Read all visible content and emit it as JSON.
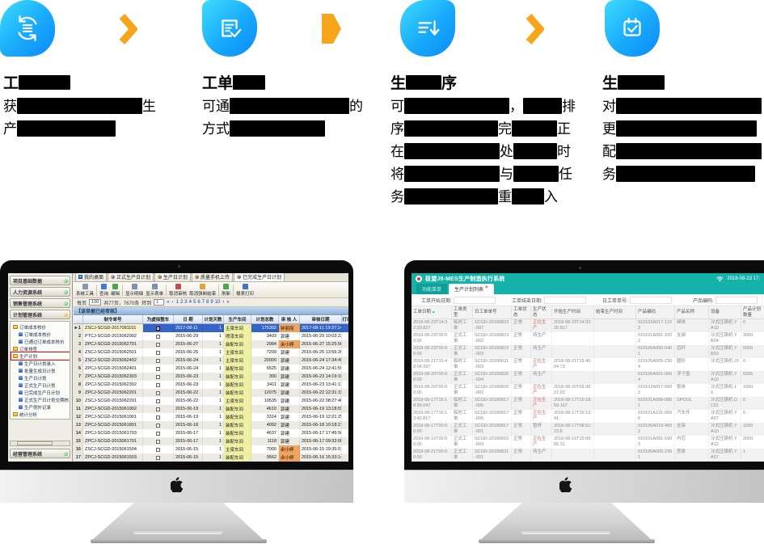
{
  "page": {
    "background": "#ffffff"
  },
  "colors": {
    "feature_icon_gradient_start": "#3edcfd",
    "feature_icon_gradient_end": "#0b8bf9",
    "arrow_orange": "#F7A61C",
    "mes_teal": "#14b2a9",
    "selection_blue": "#3464c8",
    "auditor_highlight_orange": "#f2a45c",
    "workshop_highlight_yellow": "#eef0a4",
    "producing_status_red": "#d96a62"
  },
  "features": [
    {
      "icon": "process-sync-icon",
      "title": [
        {
          "t": "工"
        },
        {
          "b": 64
        }
      ],
      "lines": [
        [
          {
            "t": "获"
          },
          {
            "b": 155
          },
          {
            "t": "生"
          }
        ],
        [
          {
            "t": "产"
          },
          {
            "b": 122
          }
        ]
      ]
    },
    {
      "icon": "work-order-check-icon",
      "title": [
        {
          "t": "工单"
        },
        {
          "b": 40
        }
      ],
      "lines": [
        [
          {
            "t": "可通"
          },
          {
            "b": 148
          },
          {
            "t": "的"
          }
        ],
        [
          {
            "t": "方式"
          },
          {
            "b": 118
          }
        ]
      ]
    },
    {
      "icon": "production-sequence-icon",
      "title": [
        {
          "t": "生"
        },
        {
          "b": 44
        },
        {
          "t": "序"
        }
      ],
      "lines": [
        [
          {
            "t": "可"
          },
          {
            "b": 130
          },
          {
            "t": "，"
          },
          {
            "b": 48
          },
          {
            "t": "排"
          }
        ],
        [
          {
            "t": "序"
          },
          {
            "b": 116
          },
          {
            "t": "完"
          },
          {
            "b": 56
          },
          {
            "t": "正"
          }
        ],
        [
          {
            "t": "在"
          },
          {
            "b": 118
          },
          {
            "t": "处"
          },
          {
            "b": 54
          },
          {
            "t": "时"
          }
        ],
        [
          {
            "t": "将"
          },
          {
            "b": 118
          },
          {
            "t": "与"
          },
          {
            "b": 56
          },
          {
            "t": "任"
          }
        ],
        [
          {
            "t": "务"
          },
          {
            "b": 116
          },
          {
            "t": "重"
          },
          {
            "b": 40
          },
          {
            "t": "入"
          }
        ]
      ]
    },
    {
      "icon": "schedule-calendar-icon",
      "title": [
        {
          "t": "生"
        },
        {
          "b": 58
        }
      ],
      "lines": [
        [
          {
            "t": "对"
          },
          {
            "b": 180
          }
        ],
        [
          {
            "t": "更"
          },
          {
            "b": 174
          }
        ],
        [
          {
            "t": "配"
          },
          {
            "b": 180
          }
        ],
        [
          {
            "t": "务"
          },
          {
            "b": 172
          }
        ]
      ]
    }
  ],
  "left_monitor": {
    "sidebar": {
      "modules": [
        "项目基础数据",
        "人力资源系统",
        "销售管理系统",
        "计划管理系统"
      ],
      "bottom_module": "经营管理系统",
      "tree": [
        {
          "label": "订单成本核价",
          "type": "folder",
          "level": 0
        },
        {
          "label": "订单成本核价",
          "type": "leaf",
          "level": 1
        },
        {
          "label": "已通过订单成本核价",
          "type": "leaf",
          "level": 1
        },
        {
          "label": "订单排查",
          "type": "folder",
          "level": 0
        },
        {
          "label": "生产计划",
          "type": "folder",
          "level": 0,
          "hl": true
        },
        {
          "label": "生产日计划录入",
          "type": "leaf",
          "level": 1
        },
        {
          "label": "批量生成日计划",
          "type": "leaf",
          "level": 1
        },
        {
          "label": "生产日计划",
          "type": "leaf",
          "level": 1
        },
        {
          "label": "正式生产日计划",
          "type": "leaf",
          "level": 1
        },
        {
          "label": "已完成生产日计划",
          "type": "leaf",
          "level": 1
        },
        {
          "label": "正式生产日计划交期核",
          "type": "leaf",
          "level": 1
        },
        {
          "label": "生产例外记录",
          "type": "leaf",
          "level": 1
        },
        {
          "label": "统计分析",
          "type": "folder",
          "level": 0
        }
      ]
    },
    "tabs": [
      "我的桌面",
      "正式生产日计划",
      "生产日计划",
      "质量手机上传",
      "已完成生产日计划"
    ],
    "toolbar": [
      "系统工具",
      "查询",
      "编辑",
      "显示明细",
      "显示表单",
      "取消审核",
      "取消强制结束",
      "刷新",
      "报表打印"
    ],
    "paging": {
      "per_page_label": "每页",
      "per_page": "100",
      "total": "共77页，7670条",
      "goto_label": "转到",
      "goto": "1",
      "nav_first": "«",
      "nav_prev": "‹",
      "nav_next": "›",
      "nav_last": "»",
      "pages": [
        "1",
        "2",
        "3",
        "4",
        "5",
        "6",
        "7",
        "8",
        "9",
        "10"
      ]
    },
    "section_title": "【该单据已经审核】",
    "columns": [
      "",
      "制令单号",
      "为虚拟整车",
      "日  期",
      "计划天数",
      "生产车间",
      "计划总数",
      "审 核 人",
      "审核日期",
      "打印次数",
      "最后"
    ],
    "rows": [
      [
        "ZSCJ-SCGD-2017081101",
        "1",
        "2017-08-11",
        "1",
        "主梁车间",
        "175392",
        "钟丽丽",
        "2017-08-11 19:37:14",
        "37",
        "20"
      ],
      [
        "PTCJ-SCGD-2015062902",
        "",
        "2015-06-29",
        "1",
        "喷漆车间",
        "3403",
        "郭建",
        "2015-06-29 10:03:23",
        "",
        ""
      ],
      [
        "ZPCJ-SCGD-2015062701",
        "",
        "2015-06-27",
        "1",
        "装配车间",
        "2984",
        "余小婷",
        "2015-06-27 15:25:56",
        "2",
        "20"
      ],
      [
        "ZSCJ-SCGD-2015062501",
        "",
        "2015-06-25",
        "1",
        "主梁车间",
        "7209",
        "郭建",
        "2015-06-25 13:56:20",
        "",
        ""
      ],
      [
        "ZSCJ-SCGD-2015062402",
        "",
        "2015-06-24",
        "1",
        "主梁车间",
        "20000",
        "郭建",
        "2015-06-24 17:34:49",
        "2",
        "20"
      ],
      [
        "ZPCJ-SCGD-2015062401",
        "",
        "2015-06-24",
        "1",
        "装配车间",
        "6525",
        "郭建",
        "2015-06-24 12:41:59",
        "1",
        "20"
      ],
      [
        "ZPCJ-SCGD-2015062303",
        "",
        "2015-06-23",
        "1",
        "装配车间",
        "300",
        "郭建",
        "2015-06-23 14:19:10",
        "",
        ""
      ],
      [
        "ZPCJ-SCGD-2015062302",
        "",
        "2015-06-23",
        "1",
        "装配车间",
        "3411",
        "郭建",
        "2015-06-23 13:41:13",
        "1",
        "20"
      ],
      [
        "ZPCJ-SCGD-2015062201",
        "",
        "2015-06-22",
        "1",
        "装配车间",
        "12075",
        "郭建",
        "2015-06-22 12:31:15",
        "2",
        "20"
      ],
      [
        "ZSCJ-SCGD-2015062201",
        "",
        "2015-06-22",
        "1",
        "主梁车间",
        "10535",
        "郭建",
        "2015-06-22 08:27:40",
        "",
        ""
      ],
      [
        "ZPCJ-SCGD-2015061902",
        "",
        "2015-06-19",
        "1",
        "装配车间",
        "4610",
        "郭建",
        "2015-06-19 13:18:59",
        "1",
        "20"
      ],
      [
        "ZPCJ-SCGD-2015061901",
        "",
        "2015-06-19",
        "1",
        "装配车间",
        "3314",
        "郭建",
        "2015-06-19 12:21:25",
        "1",
        "20"
      ],
      [
        "ZPCJ-SCGD-2015061801",
        "",
        "2015-06-18",
        "1",
        "装配车间",
        "4092",
        "郭建",
        "2015-06-18 10:18:21",
        "1",
        "20"
      ],
      [
        "ZPCJ-SCGD-2015061703",
        "",
        "2015-06-17",
        "1",
        "装配车间",
        "4637",
        "郭建",
        "2015-06-17 17:45:50",
        "1",
        "20"
      ],
      [
        "ZPCJ-SCGD-2015061701",
        "",
        "2015-06-17",
        "1",
        "装配车间",
        "1118",
        "郭建",
        "2015-06-17 09:32:00",
        "1",
        "20"
      ],
      [
        "ZSCJ-SCGD-2015061504",
        "",
        "2015-06-15",
        "1",
        "主梁车间",
        "7000",
        "余小婷",
        "2015-06-15 19:35:01",
        "",
        ""
      ],
      [
        "ZPCJ-SCGD-2015061503",
        "",
        "2015-06-15",
        "1",
        "装配车间",
        "9562",
        "余小婷",
        "2015-06-16 15:33:14",
        "1",
        "20"
      ]
    ]
  },
  "right_monitor": {
    "titlebar": {
      "title": "极望J9-MES生产制造执行系统",
      "datetime": "2018-08-23 17:"
    },
    "tabs": [
      "功能菜单",
      "生产计划列表"
    ],
    "close_glyph": "×",
    "filters": [
      "工单开始日期:",
      "工单结束日期:",
      "日工单单号:",
      "产品编码:"
    ],
    "sort_glyph": "▲",
    "columns": [
      "工单日期",
      "工单类型",
      "日工单单号",
      "工单状态",
      "生产状态",
      "开始生产时间",
      "结束生产时间",
      "产品编码",
      "产品名称",
      "设备",
      "产品计划数量",
      "产品合格数"
    ],
    "rows": [
      [
        "2018-08-23T14:32:20.827",
        "临时工单",
        "SCGD-20180823-007",
        "正常",
        "正在生产",
        "2018-08-23T14:32:20.917",
        "",
        "010102A017-1103",
        "阀体",
        "冷式压铸机 YA10",
        "0",
        ""
      ],
      [
        "2018-08-23T00:00:00",
        "正式工单",
        "SCGD-20180823-002",
        "正常",
        "待生产",
        "",
        "",
        "010101A081-3202",
        "支阀",
        "冷式压铸机 YB04",
        "3000",
        ""
      ],
      [
        "2018-08-23T00:00:00",
        "正式工单",
        "SCGD-20180823-003",
        "正常",
        "待生产",
        "",
        "",
        "010105A050-0401",
        "齿杆",
        "冷式压铸机 YB03",
        "5000",
        ""
      ],
      [
        "2018-08-21T15:40:04.597",
        "临时工单",
        "SCGD-20180621-003",
        "正常",
        "正在生产",
        "2018-08-21T15:40:04.73",
        "",
        "010105A005-2304",
        "圆形",
        "冷式压铸机 J3",
        "0",
        ""
      ],
      [
        "2018-08-20T00:00:00",
        "正式工单",
        "SCGD-20180820-004",
        "正常",
        "待生产",
        "",
        "",
        "010105A021-0604",
        "浮子盖",
        "冷式压铸机 YA10",
        "5555",
        ""
      ],
      [
        "2018-08-20T00:00:00",
        "正式工单",
        "SCGD-20180820-002",
        "正常",
        "正在生产",
        "2018-08-20T09:36:27.02",
        "",
        "010102A017-9902",
        "泵体",
        "冷式压铸机 10",
        "1000",
        "128"
      ],
      [
        "2018-08-17T16:18:59.047",
        "临时工单",
        "SCGD-20180817-006",
        "正常",
        "正在生产",
        "2018-08-17T16:18:59.167",
        "",
        "010101A089-0801",
        "SPOOL",
        "冷式压铸机 DC01",
        "0",
        ""
      ],
      [
        "2018-08-17T16:13:40.817",
        "临时工单",
        "SCGD-20180817-005",
        "正常",
        "正在生产",
        "2018-08-17T16:13:41",
        "",
        "010101A131-0666",
        "汽车件",
        "冷式压铸机 YA07",
        "0",
        ""
      ],
      [
        "2018-08-17T00:00:00",
        "正式工单",
        "SCGD-20180817-001",
        "正常",
        "暂停",
        "2018-08-17T08:51:23.8",
        "",
        "010105A019-4502",
        "支架",
        "冷式压铸机 YA10",
        "1000",
        "500"
      ],
      [
        "2018-08-16T00:00:00",
        "正式工单",
        "SCGD-20180816-003",
        "正常",
        "正在生产",
        "2018-08-16T15:06:56.31",
        "",
        "010101A081-5903",
        "内芯",
        "冷式压铸机 YA12",
        "2000",
        "800"
      ],
      [
        "2018-08-21T00:00:00",
        "正式工单",
        "SCGD-20180821-001",
        "正常",
        "待生产",
        "",
        "",
        "010105A005-2301",
        "壳体",
        "冷式压铸机 YA07",
        "1",
        ""
      ]
    ]
  }
}
